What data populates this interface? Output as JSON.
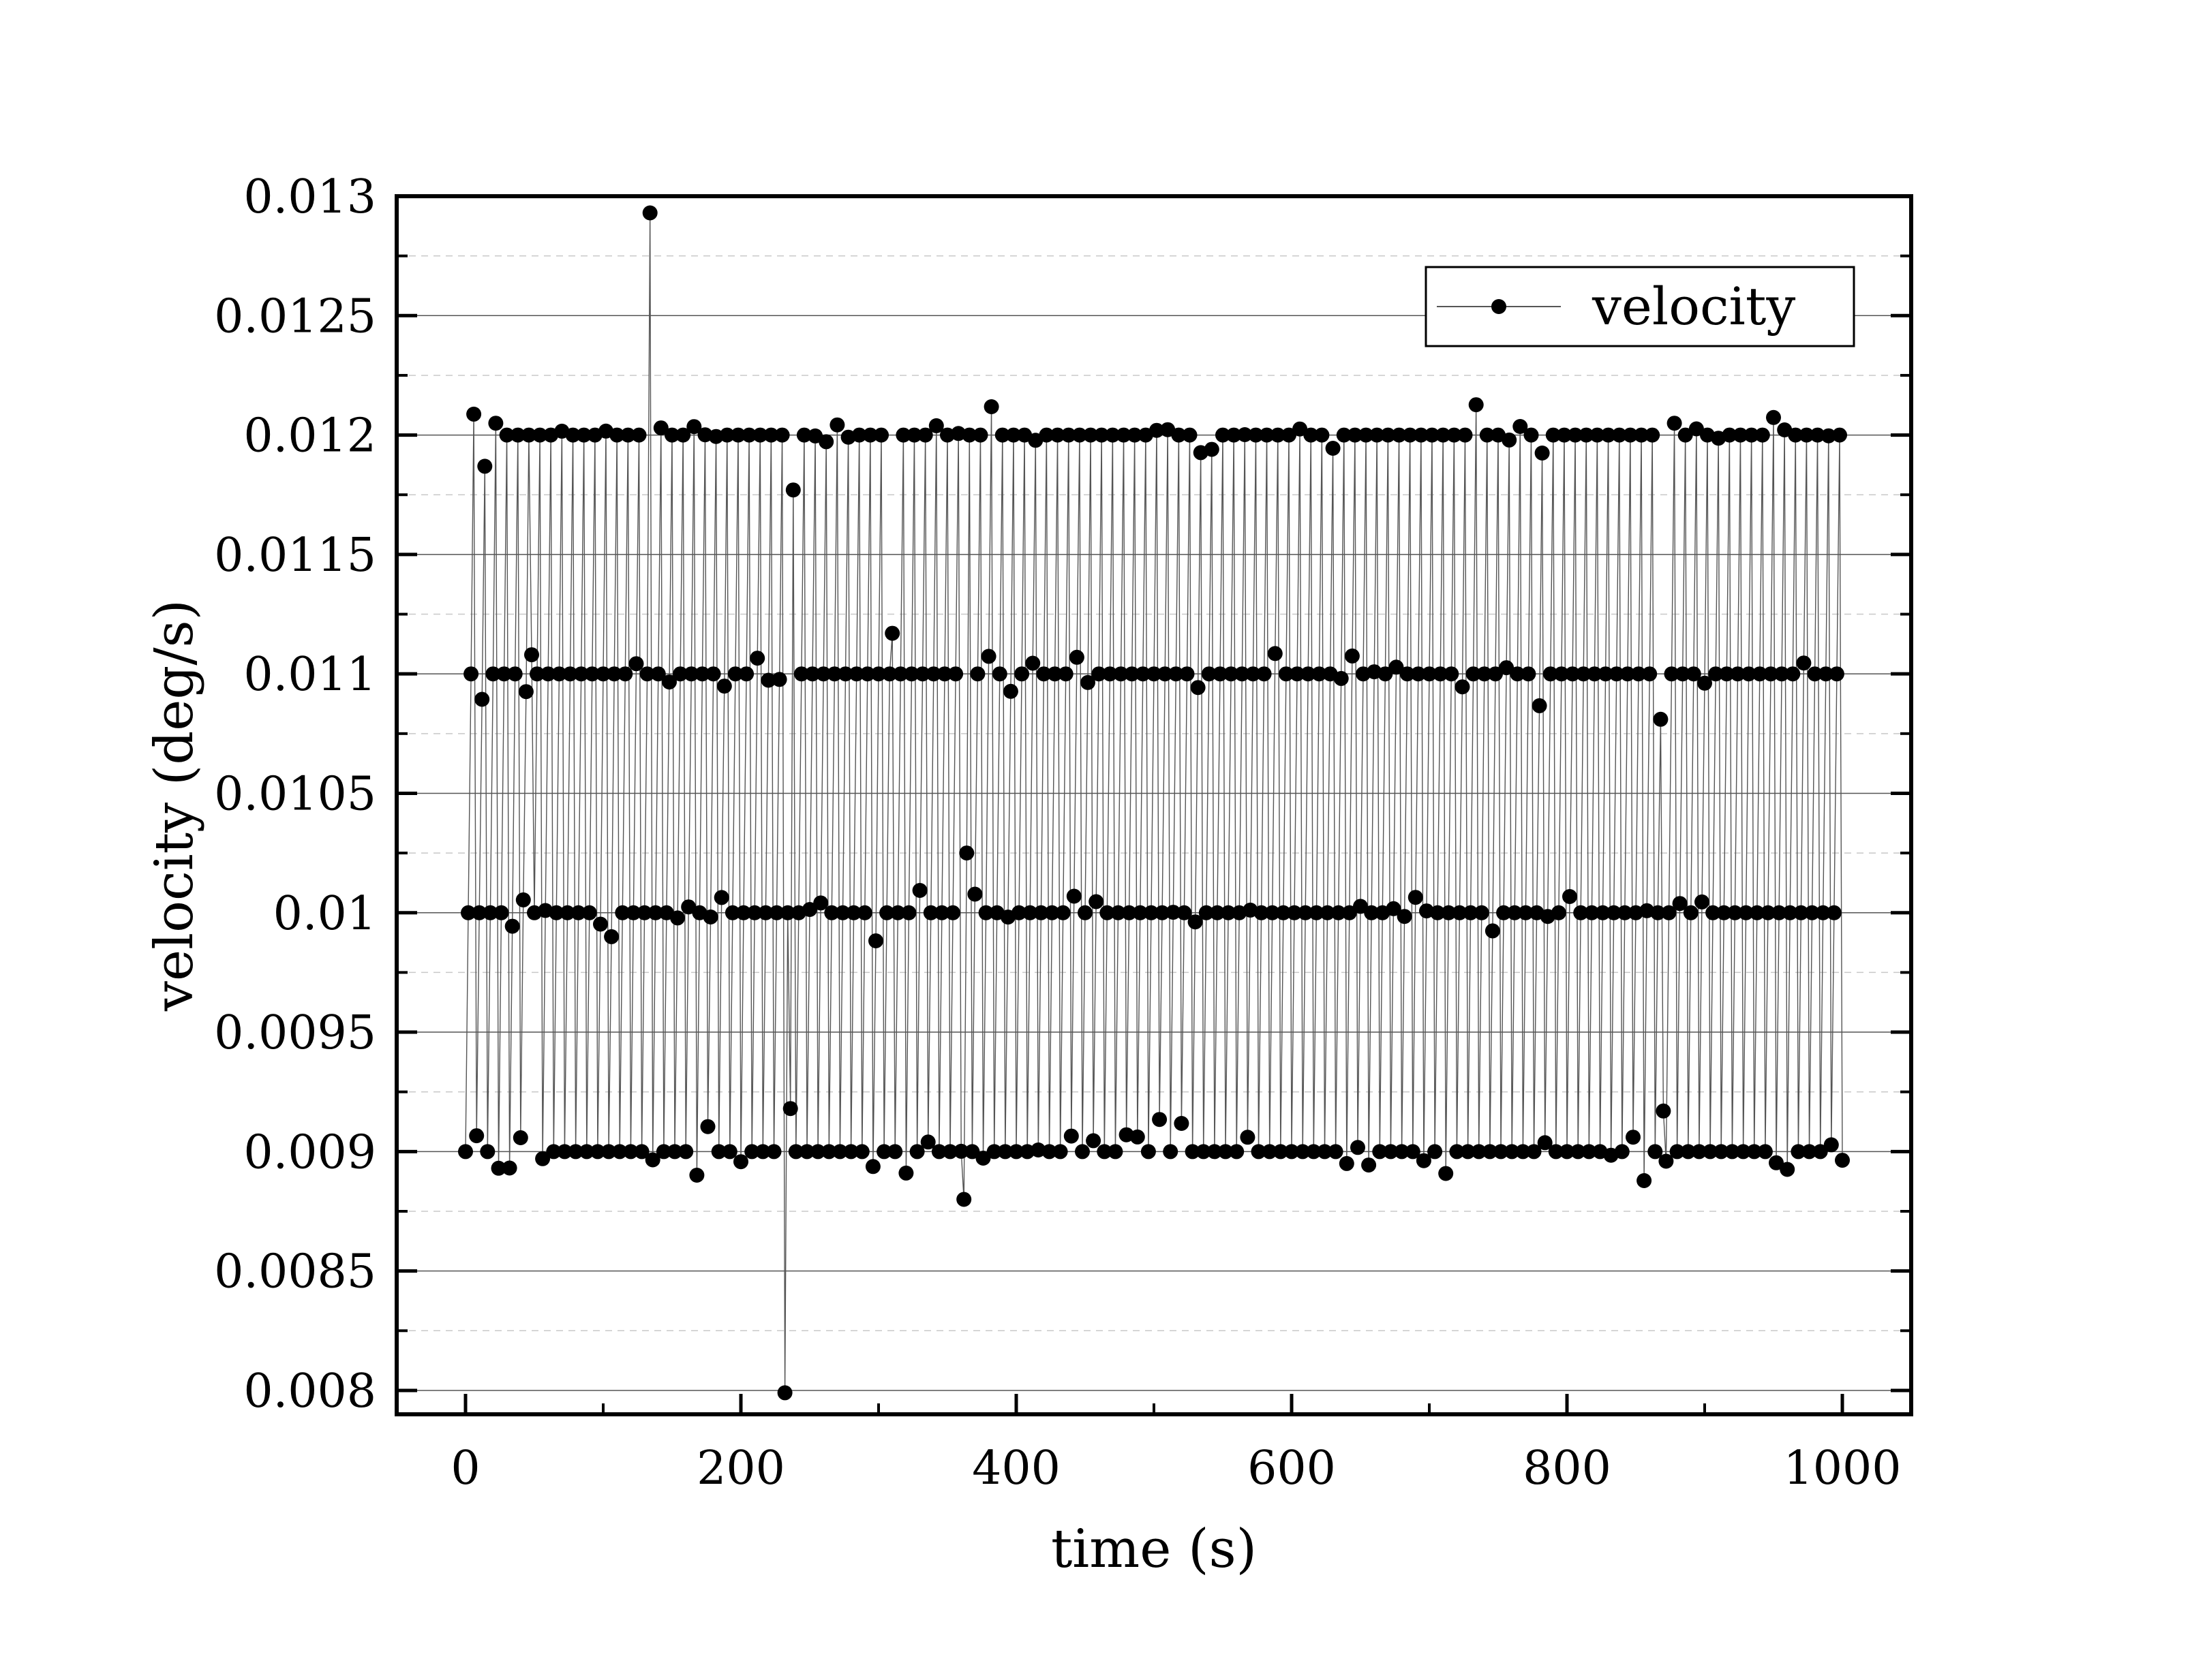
{
  "chart_data": {
    "type": "scatter",
    "title": "",
    "xlabel": "time (s)",
    "ylabel": "velocity (deg/s)",
    "xlim": [
      -50,
      1050
    ],
    "ylim": [
      0.0079,
      0.013
    ],
    "xticks": [
      0,
      200,
      400,
      600,
      800,
      1000
    ],
    "xtick_labels": [
      "0",
      "200",
      "400",
      "600",
      "800",
      "1000"
    ],
    "yticks": [
      0.008,
      0.0085,
      0.009,
      0.0095,
      0.01,
      0.0105,
      0.011,
      0.0115,
      0.012,
      0.0125,
      0.013
    ],
    "ytick_labels": [
      "0.008",
      "0.0085",
      "0.009",
      "0.0095",
      "0.01",
      "0.0105",
      "0.011",
      "0.0115",
      "0.012",
      "0.0125",
      "0.013"
    ],
    "grid": true,
    "legend_position": "top-right",
    "series": [
      {
        "name": "velocity",
        "color": "#000000",
        "line_color": "#555555",
        "marker": "circle",
        "sampling_period_s": 2,
        "pattern": "points cycle through four velocity levels 0.009, 0.010, 0.011, 0.012 deg/s with small scatter",
        "levels": [
          0.009,
          0.01,
          0.011,
          0.012
        ],
        "notable_points": [
          {
            "x": 134,
            "y": 0.01293
          },
          {
            "x": 232,
            "y": 0.00799
          },
          {
            "x": 238,
            "y": 0.01177
          },
          {
            "x": 362,
            "y": 0.0088
          },
          {
            "x": 364,
            "y": 0.01025
          },
          {
            "x": 868,
            "y": 0.01081
          },
          {
            "x": 870,
            "y": 0.00917
          },
          {
            "x": 310,
            "y": 0.01117
          },
          {
            "x": 48,
            "y": 0.01108
          },
          {
            "x": 236,
            "y": 0.00918
          }
        ]
      }
    ]
  }
}
